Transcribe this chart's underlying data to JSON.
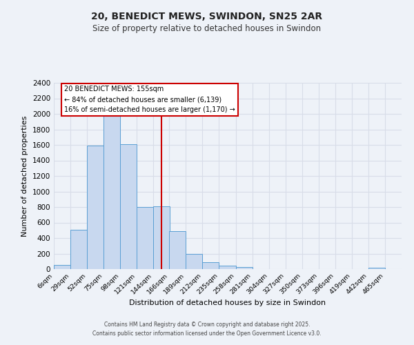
{
  "title1": "20, BENEDICT MEWS, SWINDON, SN25 2AR",
  "title2": "Size of property relative to detached houses in Swindon",
  "xlabel": "Distribution of detached houses by size in Swindon",
  "ylabel": "Number of detached properties",
  "bin_labels": [
    "6sqm",
    "29sqm",
    "52sqm",
    "75sqm",
    "98sqm",
    "121sqm",
    "144sqm",
    "166sqm",
    "189sqm",
    "212sqm",
    "235sqm",
    "258sqm",
    "281sqm",
    "304sqm",
    "327sqm",
    "350sqm",
    "373sqm",
    "396sqm",
    "419sqm",
    "442sqm",
    "465sqm"
  ],
  "bin_edges": [
    6,
    29,
    52,
    75,
    98,
    121,
    144,
    166,
    189,
    212,
    235,
    258,
    281,
    304,
    327,
    350,
    373,
    396,
    419,
    442,
    465
  ],
  "bar_heights": [
    55,
    510,
    1590,
    1970,
    1610,
    800,
    810,
    490,
    195,
    90,
    45,
    30,
    0,
    0,
    0,
    0,
    0,
    0,
    0,
    15,
    0
  ],
  "bar_color": "#c8d8ef",
  "bar_edge_color": "#5a9fd4",
  "property_line_x": 155,
  "property_line_color": "#cc0000",
  "annotation_title": "20 BENEDICT MEWS: 155sqm",
  "annotation_line1": "← 84% of detached houses are smaller (6,139)",
  "annotation_line2": "16% of semi-detached houses are larger (1,170) →",
  "annotation_box_color": "#ffffff",
  "annotation_box_edge": "#cc0000",
  "ylim": [
    0,
    2400
  ],
  "yticks": [
    0,
    200,
    400,
    600,
    800,
    1000,
    1200,
    1400,
    1600,
    1800,
    2000,
    2200,
    2400
  ],
  "background_color": "#eef2f8",
  "grid_color": "#d8dde8",
  "footer_line1": "Contains HM Land Registry data © Crown copyright and database right 2025.",
  "footer_line2": "Contains public sector information licensed under the Open Government Licence v3.0."
}
